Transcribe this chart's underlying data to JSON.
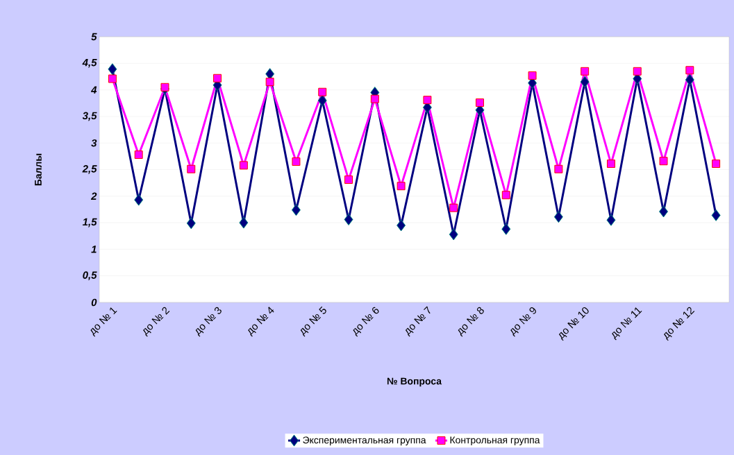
{
  "chart_data": {
    "type": "line",
    "xlabel": "№ Вопроса",
    "ylabel": "Баллы",
    "categories": [
      "до № 1",
      null,
      "до № 2",
      null,
      "до № 3",
      null,
      "до № 4",
      null,
      "до № 5",
      null,
      "до № 6",
      null,
      "до № 7",
      null,
      "до № 8",
      null,
      "до № 9",
      null,
      "до № 10",
      null,
      "до № 11",
      null,
      "до № 12",
      null
    ],
    "series": [
      {
        "name": "Экспериментальная группа",
        "color": "#000080",
        "marker": "diamond",
        "values": [
          4.39,
          1.93,
          4.02,
          1.49,
          4.09,
          1.5,
          4.3,
          1.74,
          3.8,
          1.56,
          3.95,
          1.45,
          3.67,
          1.28,
          3.62,
          1.38,
          4.13,
          1.61,
          4.15,
          1.55,
          4.21,
          1.71,
          4.19,
          1.64
        ]
      },
      {
        "name": "Контрольная группа",
        "color": "#ff00ff",
        "marker": "square",
        "values": [
          4.21,
          2.78,
          4.05,
          2.51,
          4.22,
          2.58,
          4.15,
          2.65,
          3.96,
          2.31,
          3.83,
          2.19,
          3.81,
          1.78,
          3.76,
          2.02,
          4.27,
          2.51,
          4.35,
          2.61,
          4.35,
          2.66,
          4.37,
          2.61
        ]
      }
    ],
    "ylim": [
      0,
      5
    ],
    "yticks": [
      0,
      {
        "value": 0.5,
        "label": "0,5"
      },
      1,
      {
        "value": 1.5,
        "label": "1,5"
      },
      2,
      {
        "value": 2.5,
        "label": "2,5"
      },
      3,
      {
        "value": 3.5,
        "label": "3,5"
      },
      4,
      {
        "value": 4.5,
        "label": "4,5"
      },
      5
    ],
    "grid": "y",
    "legend": "bottom",
    "line_style": "solid"
  }
}
